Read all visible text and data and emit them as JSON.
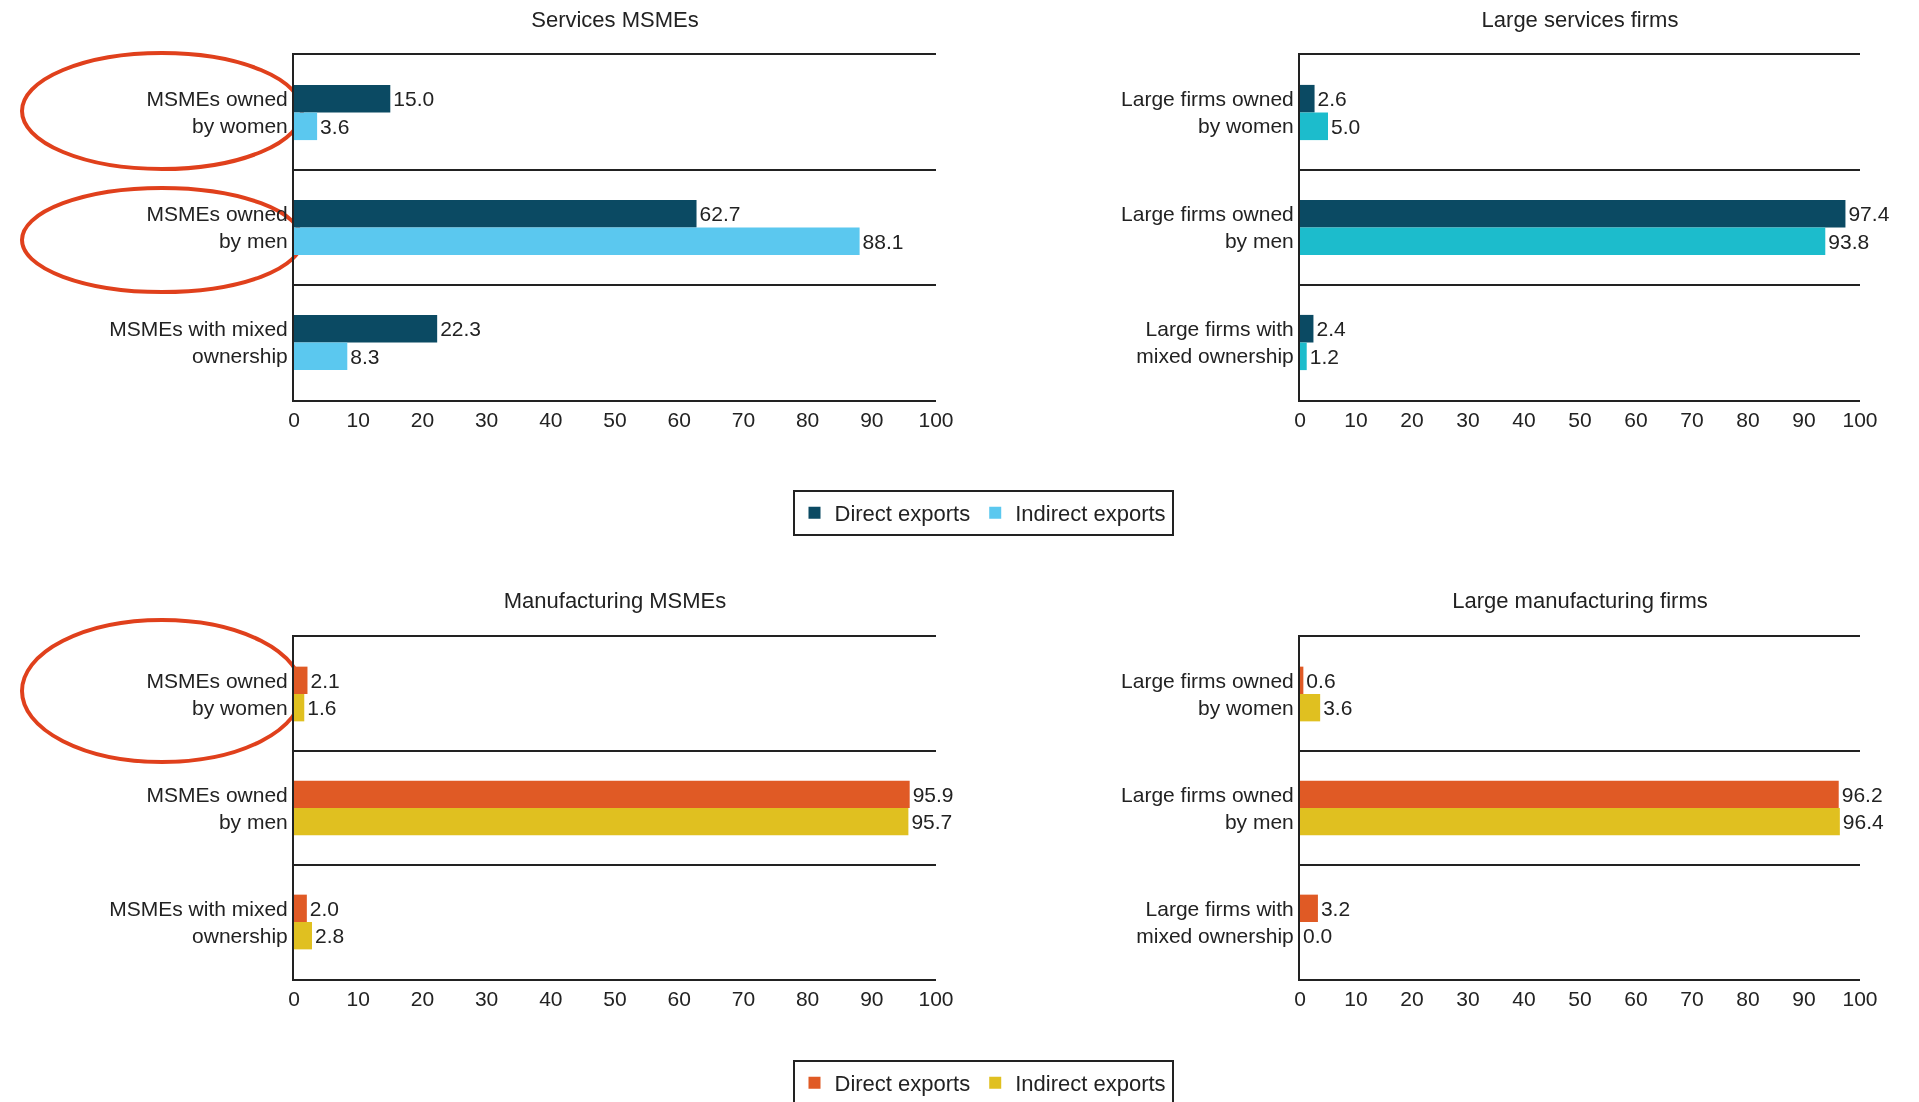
{
  "chart_data": [
    {
      "type": "bar",
      "orientation": "horizontal",
      "title": "Services MSMEs",
      "categories": [
        "MSMEs owned\nby women",
        "MSMEs owned\nby men",
        "MSMEs with mixed\nownership"
      ],
      "series": [
        {
          "name": "Direct exports",
          "color": "#0b4a63",
          "values": [
            15.0,
            62.7,
            22.3
          ],
          "value_labels": [
            "15.0",
            "62.7",
            "22.3"
          ]
        },
        {
          "name": "Indirect exports",
          "color": "#5bc8ef",
          "values": [
            3.6,
            88.1,
            8.3
          ],
          "value_labels": [
            "3.6",
            "88.1",
            "8.3"
          ]
        }
      ],
      "xlim": [
        0,
        100
      ],
      "xticks": [
        0,
        10,
        20,
        30,
        40,
        50,
        60,
        70,
        80,
        90,
        100
      ],
      "legend": "bottom",
      "grid": false
    },
    {
      "type": "bar",
      "orientation": "horizontal",
      "title": "Large services firms",
      "categories": [
        "Large firms owned\nby women",
        "Large firms owned\nby men",
        "Large firms with\nmixed ownership"
      ],
      "series": [
        {
          "color": "#0b4a63",
          "values": [
            2.6,
            97.4,
            2.4
          ],
          "value_labels": [
            "2.6",
            "97.4",
            "2.4"
          ]
        },
        {
          "color": "#1cbccc",
          "values": [
            5.0,
            93.8,
            1.2
          ],
          "value_labels": [
            "5.0",
            "93.8",
            "1.2"
          ]
        }
      ],
      "xlim": [
        0,
        100
      ],
      "xticks": [
        0,
        10,
        20,
        30,
        40,
        50,
        60,
        70,
        80,
        90,
        100
      ],
      "legend": false,
      "grid": false
    },
    {
      "type": "bar",
      "orientation": "horizontal",
      "title": "Manufacturing MSMEs",
      "categories": [
        "MSMEs owned\nby women",
        "MSMEs owned\nby men",
        "MSMEs with mixed\nownership"
      ],
      "series": [
        {
          "name": "Direct exports",
          "color": "#e05a25",
          "values": [
            2.1,
            95.9,
            2.0
          ],
          "value_labels": [
            "2.1",
            "95.9",
            "2.0"
          ]
        },
        {
          "name": "Indirect exports",
          "color": "#e0c020",
          "values": [
            1.6,
            95.7,
            2.8
          ],
          "value_labels": [
            "1.6",
            "95.7",
            "2.8"
          ]
        }
      ],
      "xlim": [
        0,
        100
      ],
      "xticks": [
        0,
        10,
        20,
        30,
        40,
        50,
        60,
        70,
        80,
        90,
        100
      ],
      "legend": "bottom",
      "grid": false
    },
    {
      "type": "bar",
      "orientation": "horizontal",
      "title": "Large manufacturing firms",
      "categories": [
        "Large firms owned\nby women",
        "Large firms owned\nby men",
        "Large firms with\nmixed ownership"
      ],
      "series": [
        {
          "color": "#e05a25",
          "values": [
            0.6,
            96.2,
            3.2
          ],
          "value_labels": [
            "0.6",
            "96.2",
            "3.2"
          ]
        },
        {
          "color": "#e0c020",
          "values": [
            3.6,
            96.4,
            0.0
          ],
          "value_labels": [
            "3.6",
            "96.4",
            "0.0"
          ]
        }
      ],
      "xlim": [
        0,
        100
      ],
      "xticks": [
        0,
        10,
        20,
        30,
        40,
        50,
        60,
        70,
        80,
        90,
        100
      ],
      "legend": false,
      "grid": false
    }
  ]
}
